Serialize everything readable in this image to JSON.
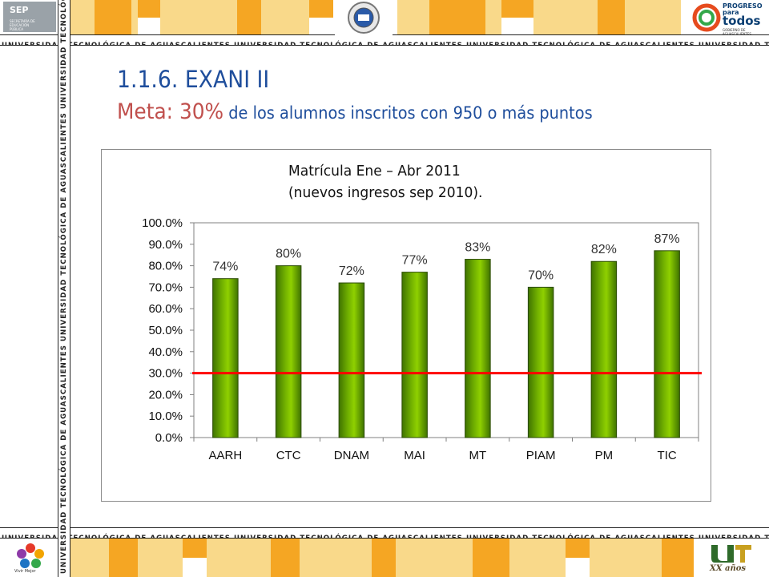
{
  "header": {
    "strip_text": "UNIVERSIDAD TECNOLÓGICA DE AGUASCALIENTES",
    "logo_left": "SEP",
    "logo_left_sub": "SECRETARÍA DE EDUCACIÓN PÚBLICA",
    "logo_right_top": "PROGRESO para",
    "logo_right_big": "todos",
    "logo_right_sub": "GOBIERNO DE AGUASCALIENTES"
  },
  "footer": {
    "logo_left_label": "Vivir Mejor",
    "logo_right_label": "XX años"
  },
  "slide": {
    "title": "1.1.6.  EXANI II",
    "subtitle_meta": "Meta: 30%",
    "subtitle_rest": " de los alumnos inscritos con 950 o más puntos"
  },
  "colors": {
    "title": "#1f4e9c",
    "meta": "#c0504d",
    "bar": "#6fae00",
    "target_line": "#ff0000",
    "band_orange": "#f5a623",
    "band_light": "#f9d98a"
  },
  "chart_data": {
    "type": "bar",
    "title": "Matrícula Ene – Abr 2011",
    "subtitle": "(nuevos ingresos sep 2010).",
    "categories": [
      "AARH",
      "CTC",
      "DNAM",
      "MAI",
      "MT",
      "PIAM",
      "PM",
      "TIC"
    ],
    "values": [
      74,
      80,
      72,
      77,
      83,
      70,
      82,
      87
    ],
    "value_labels": [
      "74%",
      "80%",
      "72%",
      "77%",
      "83%",
      "70%",
      "82%",
      "87%"
    ],
    "ylim": [
      0,
      100
    ],
    "yticks": [
      "0.0%",
      "10.0%",
      "20.0%",
      "30.0%",
      "40.0%",
      "50.0%",
      "60.0%",
      "70.0%",
      "80.0%",
      "90.0%",
      "100.0%"
    ],
    "target_line": 30,
    "grid": false,
    "legend": "none"
  }
}
